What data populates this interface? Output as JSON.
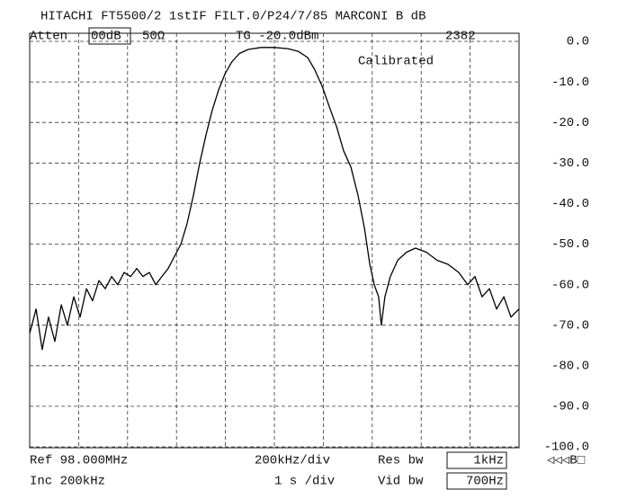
{
  "chart_data": {
    "type": "line",
    "title": "HITACHI FT5500/2 1stIF FILT.0/P24/7/85 MARCONI  B dB",
    "header": {
      "atten_label": "Atten",
      "atten": "00dB",
      "impedance": "50Ω",
      "tg": "TG -20.0dBm",
      "count": "2382"
    },
    "annotation": "Calibrated",
    "footer": {
      "ref": "Ref 98.000MHz",
      "span": "200kHz/div",
      "res_label": "Res bw",
      "res": "1kHz",
      "marker": "◁◁◁B□",
      "inc": "Inc 200kHz",
      "sweep": "1 s /div",
      "vid_label": "Vid bw",
      "vid": "700Hz"
    },
    "x": [
      97.0,
      97.026,
      97.051,
      97.077,
      97.103,
      97.129,
      97.154,
      97.18,
      97.206,
      97.232,
      97.257,
      97.283,
      97.309,
      97.335,
      97.36,
      97.386,
      97.412,
      97.438,
      97.463,
      97.489,
      97.515,
      97.54,
      97.566,
      97.592,
      97.618,
      97.643,
      97.669,
      97.695,
      97.721,
      97.746,
      97.772,
      97.798,
      97.827,
      97.857,
      97.893,
      97.945,
      98.0,
      98.055,
      98.099,
      98.136,
      98.165,
      98.195,
      98.224,
      98.254,
      98.283,
      98.313,
      98.342,
      98.368,
      98.39,
      98.408,
      98.426,
      98.437,
      98.452,
      98.474,
      98.504,
      98.54,
      98.577,
      98.621,
      98.665,
      98.71,
      98.754,
      98.79,
      98.82,
      98.849,
      98.879,
      98.908,
      98.938,
      98.967,
      99.0
    ],
    "series": [
      {
        "color": "#000000",
        "values": [
          -72,
          -66,
          -76,
          -68,
          -74,
          -65,
          -70,
          -63,
          -68,
          -61,
          -64,
          -59,
          -61,
          -58,
          -60,
          -57,
          -58,
          -56,
          -58,
          -57,
          -60,
          -58,
          -56,
          -53,
          -50,
          -45,
          -38,
          -30,
          -23,
          -17,
          -12,
          -8,
          -5,
          -3,
          -2,
          -1.5,
          -1.5,
          -1.8,
          -2.5,
          -4,
          -7,
          -11,
          -16,
          -21,
          -27,
          -31,
          -38,
          -46,
          -55,
          -60,
          -63,
          -70,
          -63,
          -58,
          -54,
          -52,
          -51,
          -52,
          -54,
          -55,
          -57,
          -60,
          -58,
          -63,
          -61,
          -66,
          -63,
          -68,
          -66
        ]
      }
    ],
    "xlim": [
      97,
      99
    ],
    "xticks": [
      97.2,
      97.4,
      97.6,
      97.8,
      98.0,
      98.2,
      98.4,
      98.6,
      98.8
    ],
    "ylim": [
      -100,
      0
    ],
    "yticks": [
      {
        "value": 0,
        "label": "0.0"
      },
      {
        "value": -10,
        "label": "-10.0"
      },
      {
        "value": -20,
        "label": "-20.0"
      },
      {
        "value": -30,
        "label": "-30.0"
      },
      {
        "value": -40,
        "label": "-40.0"
      },
      {
        "value": -50,
        "label": "-50.0"
      },
      {
        "value": -60,
        "label": "-60.0"
      },
      {
        "value": -70,
        "label": "-70.0"
      },
      {
        "value": -80,
        "label": "-80.0"
      },
      {
        "value": -90,
        "label": "-90.0"
      },
      {
        "value": -100,
        "label": "-100.0"
      }
    ],
    "grid": true
  }
}
